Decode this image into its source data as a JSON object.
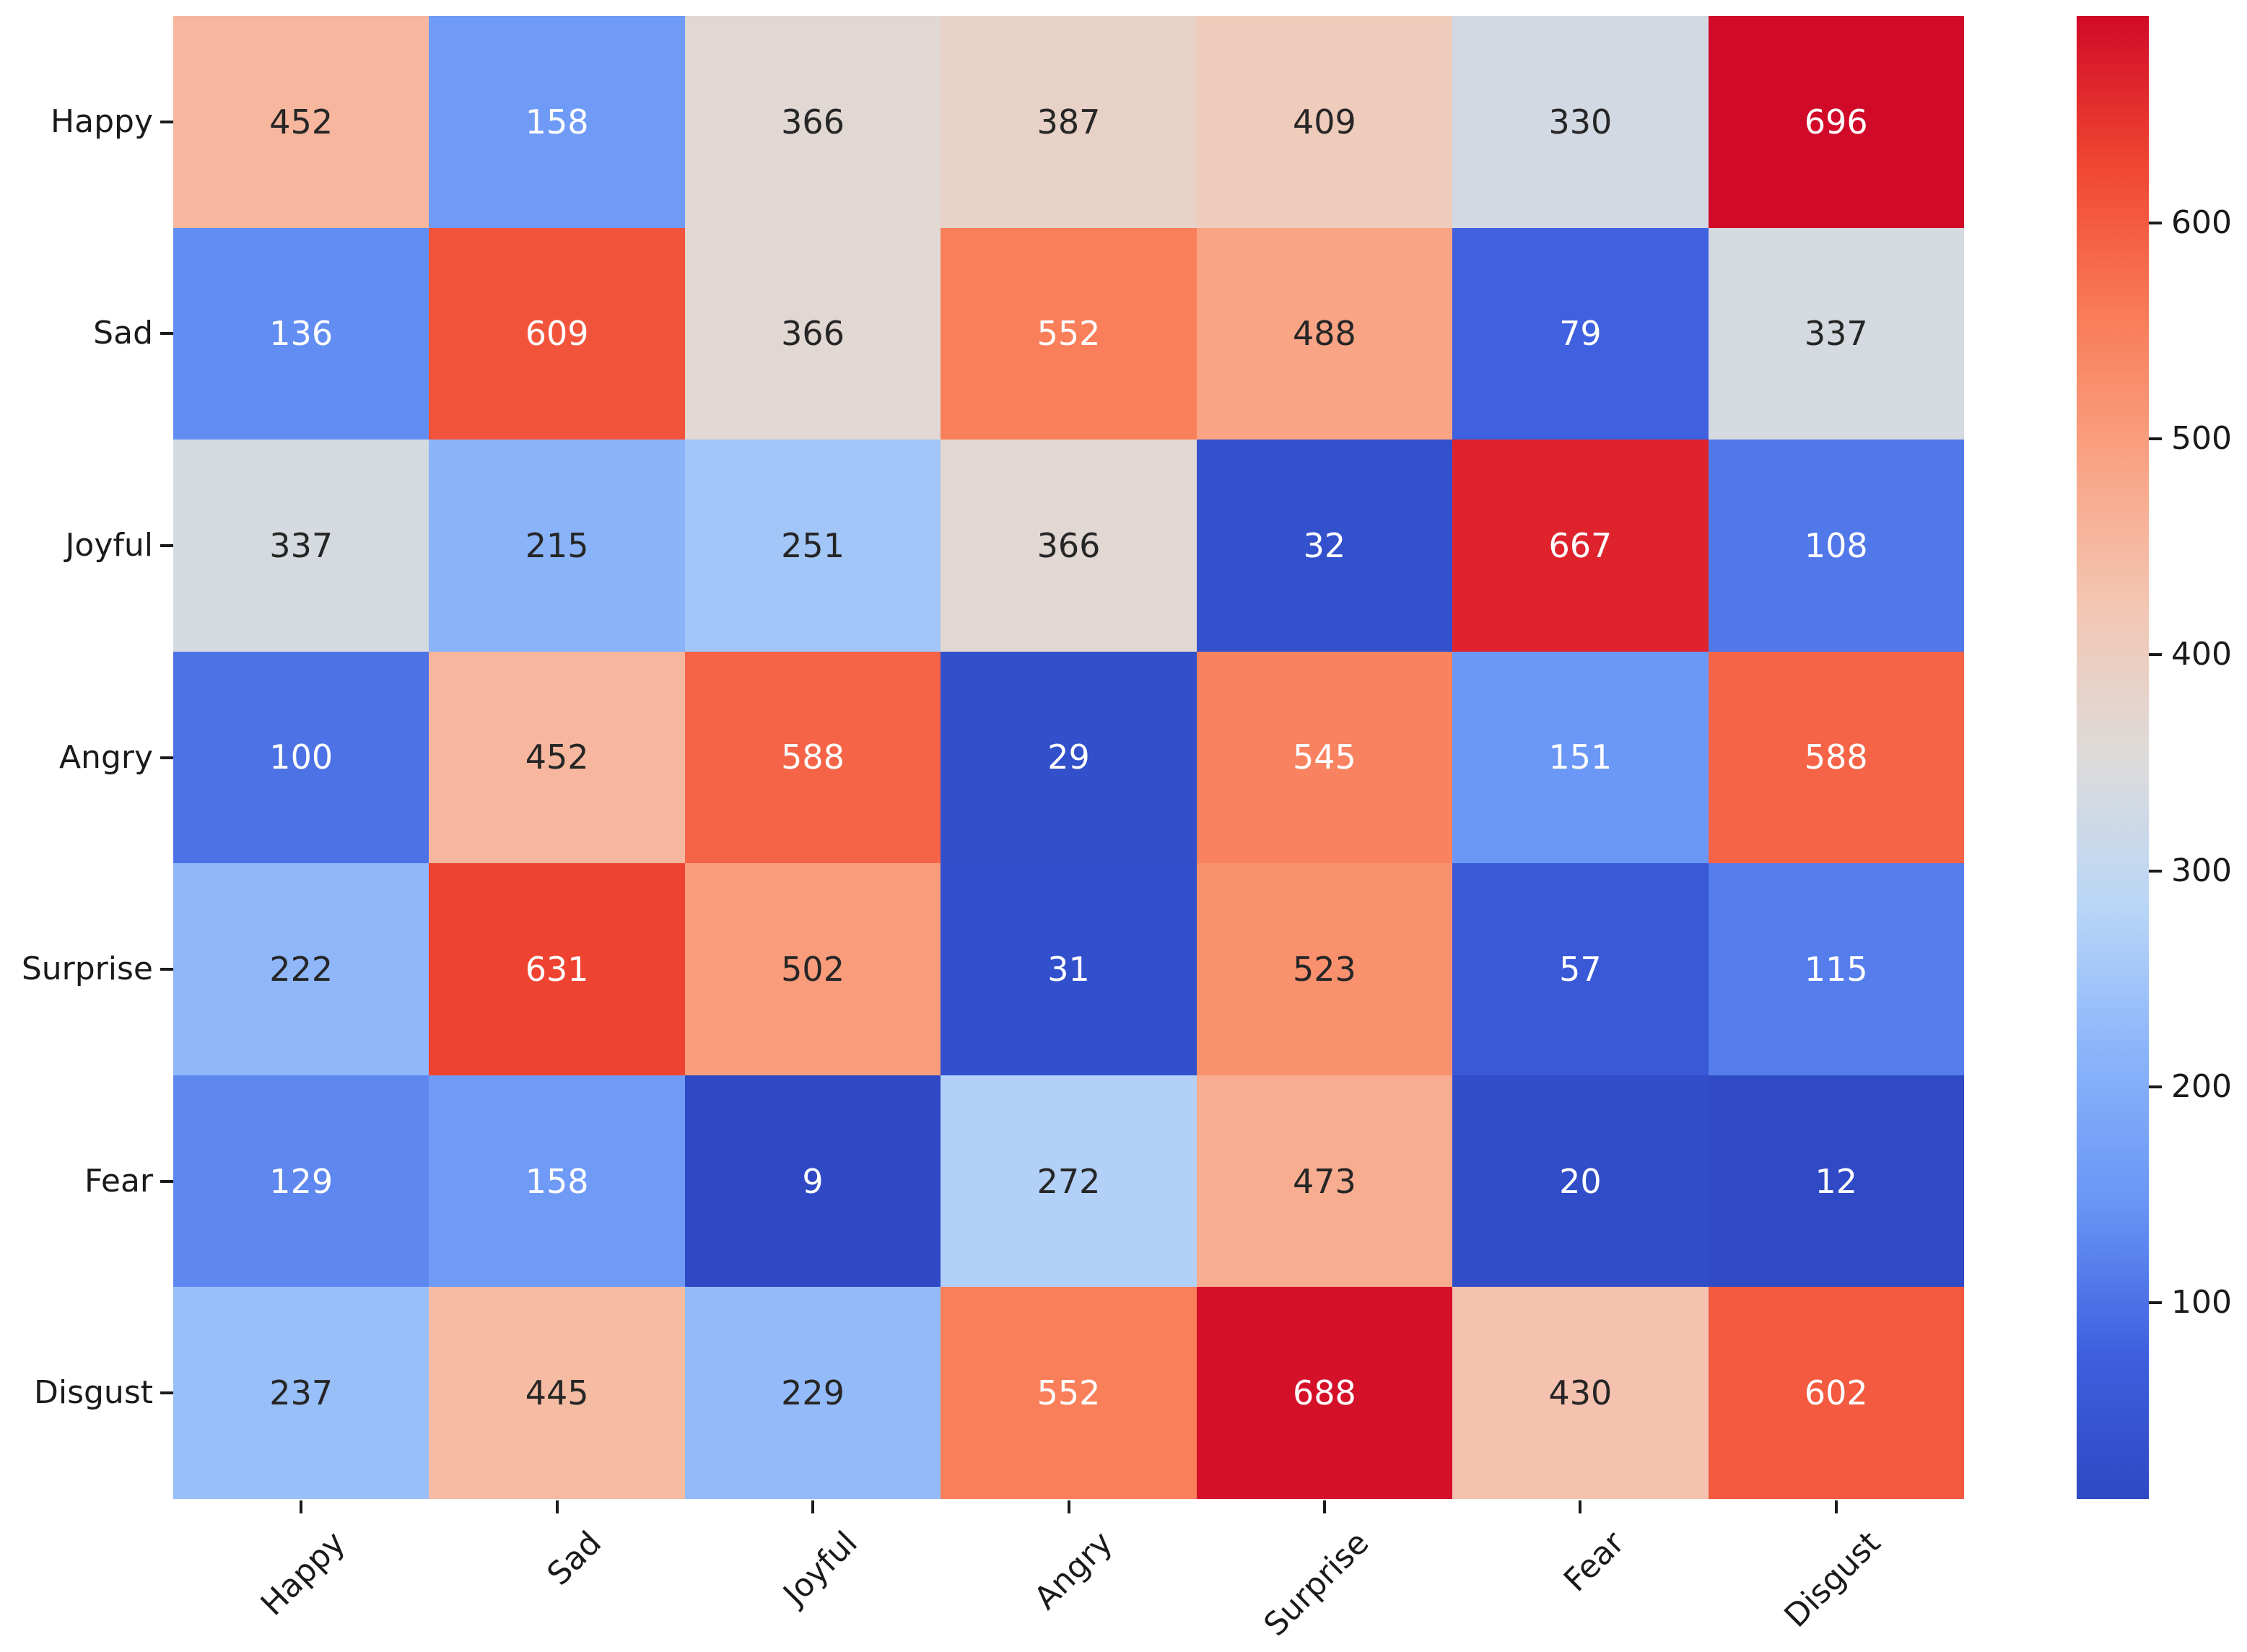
{
  "chart_data": {
    "type": "heatmap",
    "title": "",
    "xlabel": "",
    "ylabel": "",
    "categories_x": [
      "Happy",
      "Sad",
      "Joyful",
      "Angry",
      "Surprise",
      "Fear",
      "Disgust"
    ],
    "categories_y": [
      "Happy",
      "Sad",
      "Joyful",
      "Angry",
      "Surprise",
      "Fear",
      "Disgust"
    ],
    "values": [
      [
        452,
        158,
        366,
        387,
        409,
        330,
        696
      ],
      [
        136,
        609,
        366,
        552,
        488,
        79,
        337
      ],
      [
        337,
        215,
        251,
        366,
        32,
        667,
        108
      ],
      [
        100,
        452,
        588,
        29,
        545,
        151,
        588
      ],
      [
        222,
        631,
        502,
        31,
        523,
        57,
        115
      ],
      [
        129,
        158,
        9,
        272,
        473,
        20,
        12
      ],
      [
        237,
        445,
        229,
        552,
        688,
        430,
        602
      ]
    ],
    "vmin": 9,
    "vmax": 696,
    "colormap": "coolwarm",
    "colormap_stops": [
      [
        0.0,
        [
          46,
          73,
          195
        ]
      ],
      [
        0.1,
        [
          62,
          96,
          223
        ]
      ],
      [
        0.2,
        [
          105,
          150,
          246
        ]
      ],
      [
        0.3,
        [
          138,
          180,
          250
        ]
      ],
      [
        0.4,
        [
          186,
          214,
          247
        ]
      ],
      [
        0.5,
        [
          221,
          219,
          218
        ]
      ],
      [
        0.6,
        [
          243,
          199,
          180
        ]
      ],
      [
        0.7,
        [
          249,
          163,
          132
        ]
      ],
      [
        0.8,
        [
          249,
          123,
          87
        ]
      ],
      [
        0.9,
        [
          240,
          70,
          49
        ]
      ],
      [
        1.0,
        [
          208,
          10,
          40
        ]
      ]
    ],
    "annotation_colors": {
      "dark_text": "#262626",
      "light_text": "#ffffff"
    },
    "grid": false,
    "legend_position": "colorbar-right",
    "colorbar_ticks": [
      600,
      500,
      400,
      300,
      200,
      100
    ]
  }
}
